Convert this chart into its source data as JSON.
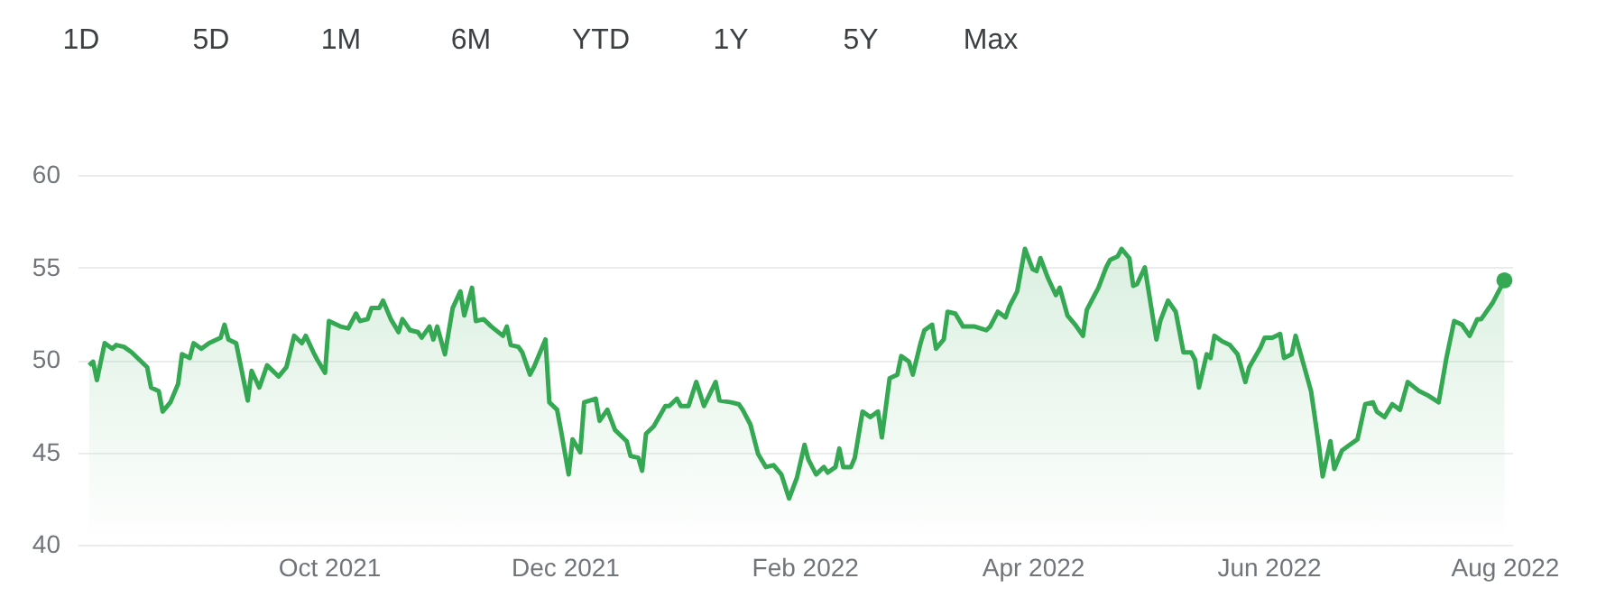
{
  "chart_data": {
    "type": "area",
    "annotations": [
      "1D",
      "5D",
      "1M",
      "6M",
      "YTD",
      "1Y",
      "5Y",
      "Max"
    ],
    "xlim": [
      "2021-07-28",
      "2022-08-03"
    ],
    "ylim": [
      40,
      60
    ],
    "yticks": [
      40,
      45,
      50,
      55,
      60
    ],
    "xticks": [
      {
        "value": "2021-10-01",
        "label": "Oct 2021"
      },
      {
        "value": "2021-12-01",
        "label": "Dec 2021"
      },
      {
        "value": "2022-02-01",
        "label": "Feb 2022"
      },
      {
        "value": "2022-04-01",
        "label": "Apr 2022"
      },
      {
        "value": "2022-06-01",
        "label": "Jun 2022"
      },
      {
        "value": "2022-08-01",
        "label": "Aug 2022"
      }
    ],
    "grid": "y",
    "series": [
      {
        "color": "#34a853",
        "x": [
          "2021-07-31",
          "2021-08-01",
          "2021-08-02",
          "2021-08-04",
          "2021-08-06",
          "2021-08-07",
          "2021-08-09",
          "2021-08-11",
          "2021-08-13",
          "2021-08-15",
          "2021-08-16",
          "2021-08-18",
          "2021-08-19",
          "2021-08-21",
          "2021-08-23",
          "2021-08-24",
          "2021-08-26",
          "2021-08-27",
          "2021-08-29",
          "2021-08-31",
          "2021-09-03",
          "2021-09-04",
          "2021-09-05",
          "2021-09-07",
          "2021-09-10",
          "2021-09-11",
          "2021-09-13",
          "2021-09-15",
          "2021-09-18",
          "2021-09-20",
          "2021-09-22",
          "2021-09-24",
          "2021-09-25",
          "2021-09-27",
          "2021-09-28",
          "2021-09-30",
          "2021-10-01",
          "2021-10-04",
          "2021-10-06",
          "2021-10-08",
          "2021-10-09",
          "2021-10-11",
          "2021-10-12",
          "2021-10-14",
          "2021-10-15",
          "2021-10-17",
          "2021-10-19",
          "2021-10-20",
          "2021-10-22",
          "2021-10-24",
          "2021-10-25",
          "2021-10-27",
          "2021-10-28",
          "2021-10-29",
          "2021-10-31",
          "2021-11-02",
          "2021-11-04",
          "2021-11-05",
          "2021-11-07",
          "2021-11-08",
          "2021-11-10",
          "2021-11-12",
          "2021-11-15",
          "2021-11-16",
          "2021-11-17",
          "2021-11-19",
          "2021-11-20",
          "2021-11-22",
          "2021-11-23",
          "2021-11-26",
          "2021-11-27",
          "2021-11-29",
          "2021-11-30",
          "2021-12-02",
          "2021-12-03",
          "2021-12-05",
          "2021-12-06",
          "2021-12-09",
          "2021-12-10",
          "2021-12-12",
          "2021-12-14",
          "2021-12-17",
          "2021-12-18",
          "2021-12-20",
          "2021-12-21",
          "2021-12-22",
          "2021-12-24",
          "2021-12-27",
          "2021-12-28",
          "2021-12-30",
          "2021-12-31",
          "2022-01-02",
          "2022-01-04",
          "2022-01-06",
          "2022-01-09",
          "2022-01-10",
          "2022-01-13",
          "2022-01-15",
          "2022-01-16",
          "2022-01-18",
          "2022-01-20",
          "2022-01-22",
          "2022-01-24",
          "2022-01-26",
          "2022-01-28",
          "2022-01-30",
          "2022-02-01",
          "2022-02-02",
          "2022-02-04",
          "2022-02-06",
          "2022-02-07",
          "2022-02-09",
          "2022-02-10",
          "2022-02-11",
          "2022-02-13",
          "2022-02-14",
          "2022-02-16",
          "2022-02-18",
          "2022-02-20",
          "2022-02-21",
          "2022-02-23",
          "2022-02-25",
          "2022-02-26",
          "2022-02-28",
          "2022-03-01",
          "2022-03-03",
          "2022-03-04",
          "2022-03-06",
          "2022-03-07",
          "2022-03-09",
          "2022-03-10",
          "2022-03-12",
          "2022-03-14",
          "2022-03-17",
          "2022-03-20",
          "2022-03-21",
          "2022-03-23",
          "2022-03-25",
          "2022-03-26",
          "2022-03-28",
          "2022-03-30",
          "2022-04-01",
          "2022-04-02",
          "2022-04-03",
          "2022-04-05",
          "2022-04-07",
          "2022-04-08",
          "2022-04-10",
          "2022-04-12",
          "2022-04-14",
          "2022-04-15",
          "2022-04-17",
          "2022-04-18",
          "2022-04-20",
          "2022-04-21",
          "2022-04-23",
          "2022-04-24",
          "2022-04-26",
          "2022-04-27",
          "2022-04-28",
          "2022-04-30",
          "2022-05-02",
          "2022-05-03",
          "2022-05-04",
          "2022-05-06",
          "2022-05-08",
          "2022-05-10",
          "2022-05-12",
          "2022-05-13",
          "2022-05-14",
          "2022-05-16",
          "2022-05-17",
          "2022-05-18",
          "2022-05-20",
          "2022-05-22",
          "2022-05-24",
          "2022-05-26",
          "2022-05-27",
          "2022-05-30",
          "2022-05-31",
          "2022-06-02",
          "2022-06-04",
          "2022-06-05",
          "2022-06-07",
          "2022-06-08",
          "2022-06-10",
          "2022-06-12",
          "2022-06-14",
          "2022-06-15",
          "2022-06-17",
          "2022-06-18",
          "2022-06-20",
          "2022-06-22",
          "2022-06-24",
          "2022-06-26",
          "2022-06-28",
          "2022-06-29",
          "2022-07-01",
          "2022-07-03",
          "2022-07-05",
          "2022-07-07",
          "2022-07-10",
          "2022-07-12",
          "2022-07-15",
          "2022-07-17",
          "2022-07-19",
          "2022-07-21",
          "2022-07-23",
          "2022-07-25",
          "2022-07-26",
          "2022-07-29",
          "2022-08-01"
        ],
        "values": [
          49.7,
          49.9,
          48.9,
          50.9,
          50.6,
          50.8,
          50.7,
          50.4,
          50.0,
          49.6,
          48.5,
          48.3,
          47.2,
          47.7,
          48.7,
          50.3,
          50.1,
          50.9,
          50.6,
          50.9,
          51.2,
          51.9,
          51.1,
          50.9,
          47.8,
          49.4,
          48.5,
          49.7,
          49.1,
          49.6,
          51.3,
          50.9,
          51.3,
          50.4,
          50.0,
          49.3,
          52.1,
          51.8,
          51.7,
          52.5,
          52.1,
          52.2,
          52.8,
          52.8,
          53.2,
          52.2,
          51.5,
          52.2,
          51.6,
          51.5,
          51.2,
          51.8,
          51.1,
          51.8,
          50.3,
          52.8,
          53.7,
          52.4,
          53.9,
          52.1,
          52.2,
          51.8,
          51.3,
          51.8,
          50.8,
          50.7,
          50.4,
          49.2,
          49.6,
          51.1,
          47.7,
          47.3,
          46.2,
          43.8,
          45.7,
          45.0,
          47.7,
          47.9,
          46.7,
          47.3,
          46.2,
          45.6,
          44.8,
          44.7,
          44.0,
          46.0,
          46.4,
          47.5,
          47.5,
          47.9,
          47.5,
          47.5,
          48.8,
          47.5,
          48.8,
          47.8,
          47.7,
          47.6,
          47.3,
          46.5,
          44.9,
          44.2,
          44.3,
          43.8,
          42.5,
          43.6,
          45.4,
          44.6,
          43.8,
          44.2,
          43.9,
          44.2,
          45.2,
          44.2,
          44.2,
          44.7,
          47.2,
          46.9,
          47.2,
          45.8,
          49.0,
          49.2,
          50.2,
          49.9,
          49.2,
          50.9,
          51.6,
          51.9,
          50.6,
          51.1,
          52.6,
          52.5,
          51.8,
          51.8,
          51.6,
          51.8,
          52.6,
          52.3,
          52.9,
          53.7,
          56.0,
          54.9,
          54.8,
          55.5,
          54.4,
          53.5,
          53.9,
          52.4,
          51.9,
          51.3,
          52.7,
          53.5,
          53.9,
          55.0,
          55.4,
          55.6,
          56.0,
          55.5,
          54.0,
          54.1,
          55.0,
          52.4,
          51.1,
          52.1,
          53.2,
          52.6,
          50.4,
          50.4,
          50.0,
          48.5,
          50.3,
          50.1,
          51.3,
          51.0,
          50.8,
          50.3,
          48.8,
          49.6,
          50.7,
          51.2,
          51.2,
          51.4,
          50.1,
          50.3,
          51.3,
          49.8,
          48.3,
          45.4,
          43.7,
          45.6,
          44.1,
          45.1,
          45.4,
          45.7,
          47.6,
          47.7,
          47.2,
          46.9,
          47.6,
          47.3,
          48.8,
          48.3,
          48.1,
          47.7,
          50.1,
          52.1,
          51.9,
          51.3,
          52.2,
          52.2,
          53.1,
          54.3
        ]
      },
      {
        "type": "scatter",
        "color": "#34a853",
        "x": [
          "2022-08-01"
        ],
        "values": [
          54.3
        ]
      }
    ]
  }
}
